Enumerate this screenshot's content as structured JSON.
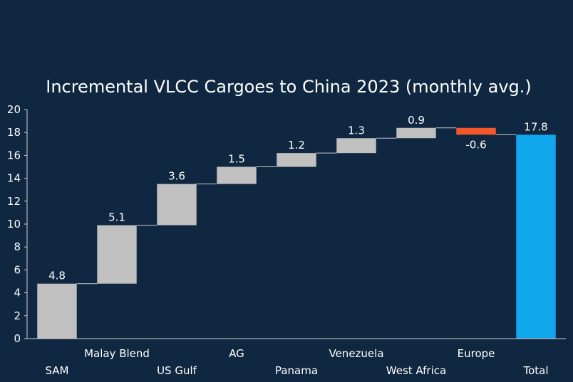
{
  "colors": {
    "background": "#0f2741",
    "increase": "#c0c0c0",
    "decrease": "#f2582a",
    "total": "#10a7ec",
    "axis": "#d0d0d0",
    "connector": "#c8c8c8"
  },
  "chart_data": {
    "type": "bar",
    "subtype": "waterfall",
    "title": "Incremental VLCC Cargoes to China 2023 (monthly avg.)",
    "xlabel": "",
    "ylabel": "",
    "ylim": [
      0,
      20
    ],
    "yticks": [
      "0",
      "2",
      "4",
      "6",
      "8",
      "10",
      "12",
      "14",
      "16",
      "18",
      "20"
    ],
    "grid": false,
    "legend": "none",
    "categories": [
      "SAM",
      "Malay Blend",
      "US Gulf",
      "AG",
      "Panama",
      "Venezuela",
      "West Africa",
      "Europe",
      "Total"
    ],
    "values": [
      4.8,
      5.1,
      3.6,
      1.5,
      1.2,
      1.3,
      0.9,
      -0.6,
      17.8
    ],
    "labels": [
      "4.8",
      "5.1",
      "3.6",
      "1.5",
      "1.2",
      "1.3",
      "0.9",
      "-0.6",
      "17.8"
    ],
    "kinds": [
      "delta",
      "delta",
      "delta",
      "delta",
      "delta",
      "delta",
      "delta",
      "delta",
      "total"
    ]
  }
}
